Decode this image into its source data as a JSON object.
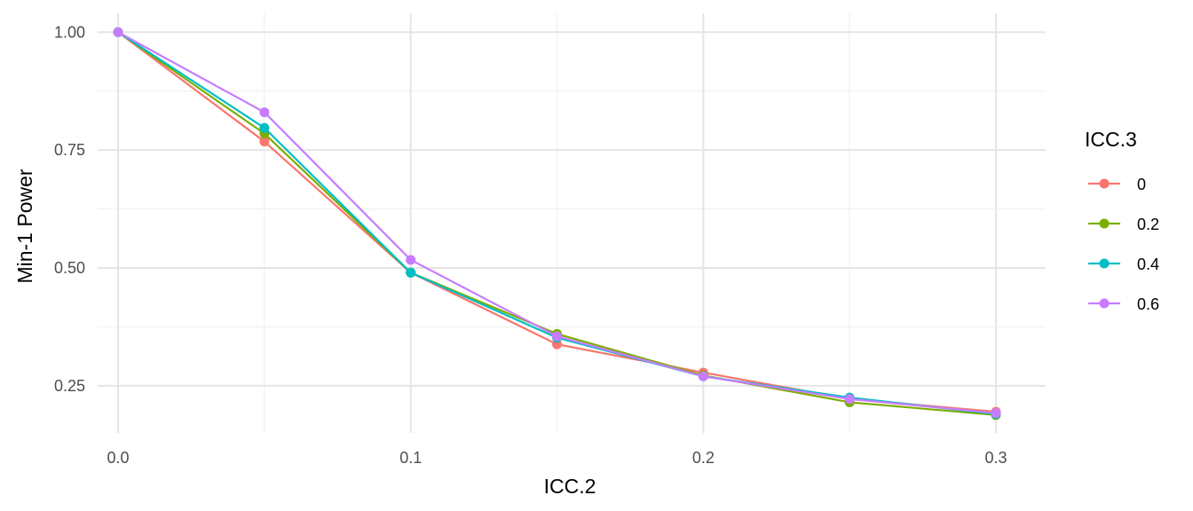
{
  "chart_data": {
    "type": "line",
    "xlabel": "ICC.2",
    "ylabel": "Min-1 Power",
    "x": [
      0.0,
      0.05,
      0.1,
      0.15,
      0.2,
      0.25,
      0.3
    ],
    "xlim": [
      -0.007,
      0.317
    ],
    "ylim": [
      0.15,
      1.04
    ],
    "x_ticks": [
      0.0,
      0.1,
      0.2,
      0.3
    ],
    "x_tick_labels": [
      "0.0",
      "0.1",
      "0.2",
      "0.3"
    ],
    "y_ticks": [
      0.25,
      0.5,
      0.75,
      1.0
    ],
    "y_tick_labels": [
      "0.25",
      "0.50",
      "0.75",
      "1.00"
    ],
    "x_minor": [
      0.05,
      0.15,
      0.25
    ],
    "y_minor": [
      0.375,
      0.625,
      0.875
    ],
    "grid": true,
    "legend": {
      "title": "ICC.3",
      "position": "right"
    },
    "series": [
      {
        "name": "0",
        "color": "#F8766D",
        "values": [
          1.0,
          0.768,
          0.49,
          0.338,
          0.278,
          0.222,
          0.195
        ]
      },
      {
        "name": "0.2",
        "color": "#7CAE00",
        "values": [
          1.0,
          0.785,
          0.49,
          0.36,
          0.272,
          0.215,
          0.188
        ]
      },
      {
        "name": "0.4",
        "color": "#00BFC4",
        "values": [
          1.0,
          0.797,
          0.49,
          0.352,
          0.27,
          0.225,
          0.19
        ]
      },
      {
        "name": "0.6",
        "color": "#C77CFF",
        "values": [
          1.0,
          0.83,
          0.517,
          0.355,
          0.27,
          0.222,
          0.192
        ]
      }
    ]
  }
}
